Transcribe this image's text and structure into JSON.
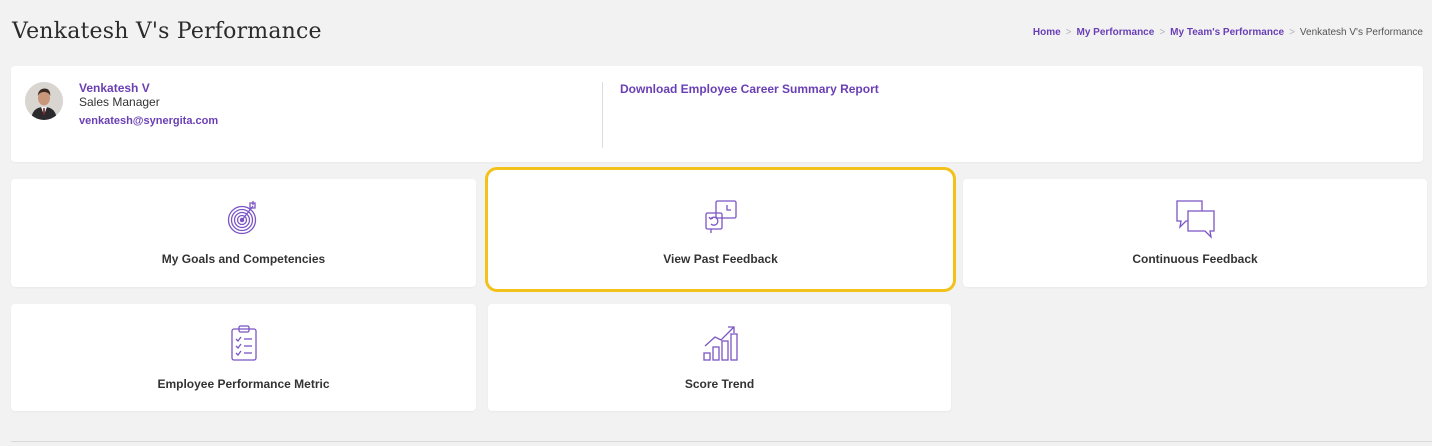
{
  "page": {
    "title": "Venkatesh V's Performance"
  },
  "breadcrumb": [
    {
      "label": "Home"
    },
    {
      "label": "My Performance"
    },
    {
      "label": "My Team's Performance"
    },
    {
      "label": "Venkatesh V's Performance"
    }
  ],
  "breadcrumb_separator": ">",
  "profile": {
    "name": "Venkatesh V",
    "role": "Sales Manager",
    "email": "venkatesh@synergita.com",
    "download_label": "Download Employee Career Summary Report"
  },
  "tiles": [
    {
      "label": "My Goals and Competencies",
      "icon": "target-icon"
    },
    {
      "label": "View Past Feedback",
      "icon": "past-feedback-icon",
      "highlighted": true
    },
    {
      "label": "Continuous Feedback",
      "icon": "chat-bubbles-icon"
    },
    {
      "label": "Employee Performance Metric",
      "icon": "clipboard-checklist-icon"
    },
    {
      "label": "Score Trend",
      "icon": "trend-chart-icon"
    }
  ],
  "colors": {
    "accent": "#6a3fb5",
    "highlight": "#f2c21b",
    "background": "#f2f2f3"
  }
}
